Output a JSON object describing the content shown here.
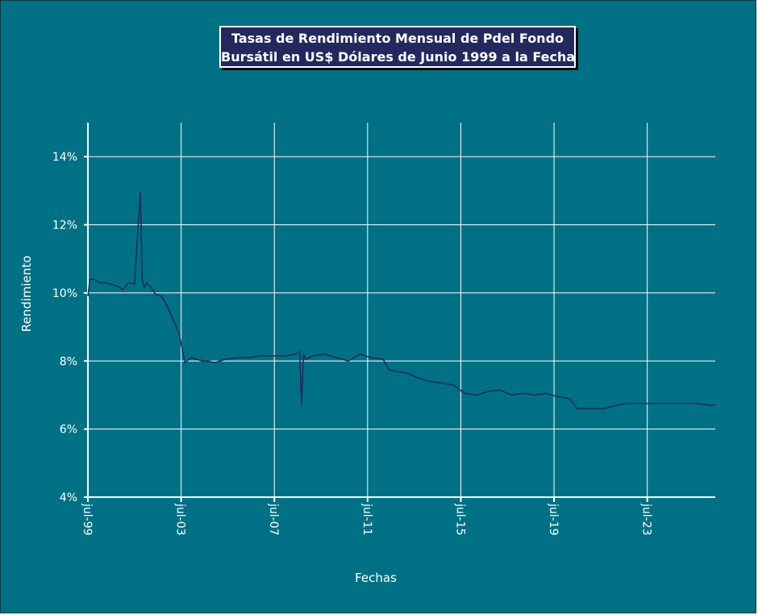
{
  "title_line1": "Tasas de Rendimiento Mensual de Pdel Fondo",
  "title_line2": "Bursátil en US$ Dólares de Junio 1999 a la Fecha",
  "colors": {
    "background": "#007184",
    "series": "#1f2d5a",
    "grid": "#ffffff",
    "title_box": "#23285e"
  },
  "chart_data": {
    "type": "line",
    "title": "Tasas de Rendimiento Mensual de Pdel Fondo Bursátil en US$ Dólares de Junio 1999 a la Fecha",
    "xlabel": "Fechas",
    "ylabel": "Rendimiento",
    "x_ticks": [
      "jul-99",
      "jul-03",
      "jul-07",
      "jul-11",
      "jul-15",
      "jul-19",
      "jul-23"
    ],
    "y_ticks": [
      "4%",
      "6%",
      "8%",
      "10%",
      "12%",
      "14%"
    ],
    "ylim": [
      4,
      15
    ],
    "x_range": [
      "1999-07",
      "2026-06"
    ],
    "grid": true,
    "legend": "none",
    "series": [
      {
        "x": [
          "1999-07",
          "1999-08",
          "1999-10",
          "2000-01",
          "2000-04",
          "2000-07",
          "2000-10",
          "2001-01",
          "2001-04",
          "2001-07",
          "2001-10",
          "2001-11",
          "2001-12",
          "2002-01",
          "2002-03",
          "2002-06",
          "2002-09",
          "2002-12",
          "2003-03",
          "2003-06",
          "2003-09",
          "2003-12",
          "2004-03",
          "2004-06",
          "2004-09",
          "2004-12",
          "2005-06",
          "2005-12",
          "2006-06",
          "2006-12",
          "2007-06",
          "2007-12",
          "2008-06",
          "2008-08",
          "2008-09",
          "2008-10",
          "2008-11",
          "2009-03",
          "2009-09",
          "2010-03",
          "2010-09",
          "2011-03",
          "2011-09",
          "2012-03",
          "2012-06",
          "2012-09",
          "2013-03",
          "2013-09",
          "2014-03",
          "2014-09",
          "2015-03",
          "2015-09",
          "2016-03",
          "2016-09",
          "2017-03",
          "2017-09",
          "2018-03",
          "2018-09",
          "2019-03",
          "2019-09",
          "2020-03",
          "2020-07",
          "2020-10",
          "2021-03",
          "2021-09",
          "2022-03",
          "2022-09",
          "2023-03",
          "2023-09",
          "2024-03",
          "2024-09",
          "2025-03",
          "2025-09",
          "2026-03",
          "2026-06"
        ],
        "y": [
          9.9,
          10.4,
          10.4,
          10.3,
          10.3,
          10.25,
          10.2,
          10.1,
          10.3,
          10.25,
          12.95,
          10.4,
          10.15,
          10.3,
          10.2,
          9.95,
          9.9,
          9.6,
          9.2,
          8.8,
          7.95,
          8.1,
          8.05,
          8.0,
          8.0,
          7.95,
          8.05,
          8.1,
          8.1,
          8.15,
          8.15,
          8.15,
          8.2,
          8.3,
          6.7,
          8.2,
          8.05,
          8.15,
          8.2,
          8.1,
          8.0,
          8.2,
          8.1,
          8.05,
          7.75,
          7.7,
          7.65,
          7.5,
          7.4,
          7.35,
          7.3,
          7.05,
          7.0,
          7.1,
          7.15,
          7.0,
          7.05,
          7.0,
          7.05,
          6.95,
          6.9,
          6.6,
          6.6,
          6.6,
          6.6,
          6.7,
          6.75,
          6.75,
          6.75,
          6.75,
          6.75,
          6.75,
          6.75,
          6.7,
          6.7
        ]
      }
    ]
  }
}
